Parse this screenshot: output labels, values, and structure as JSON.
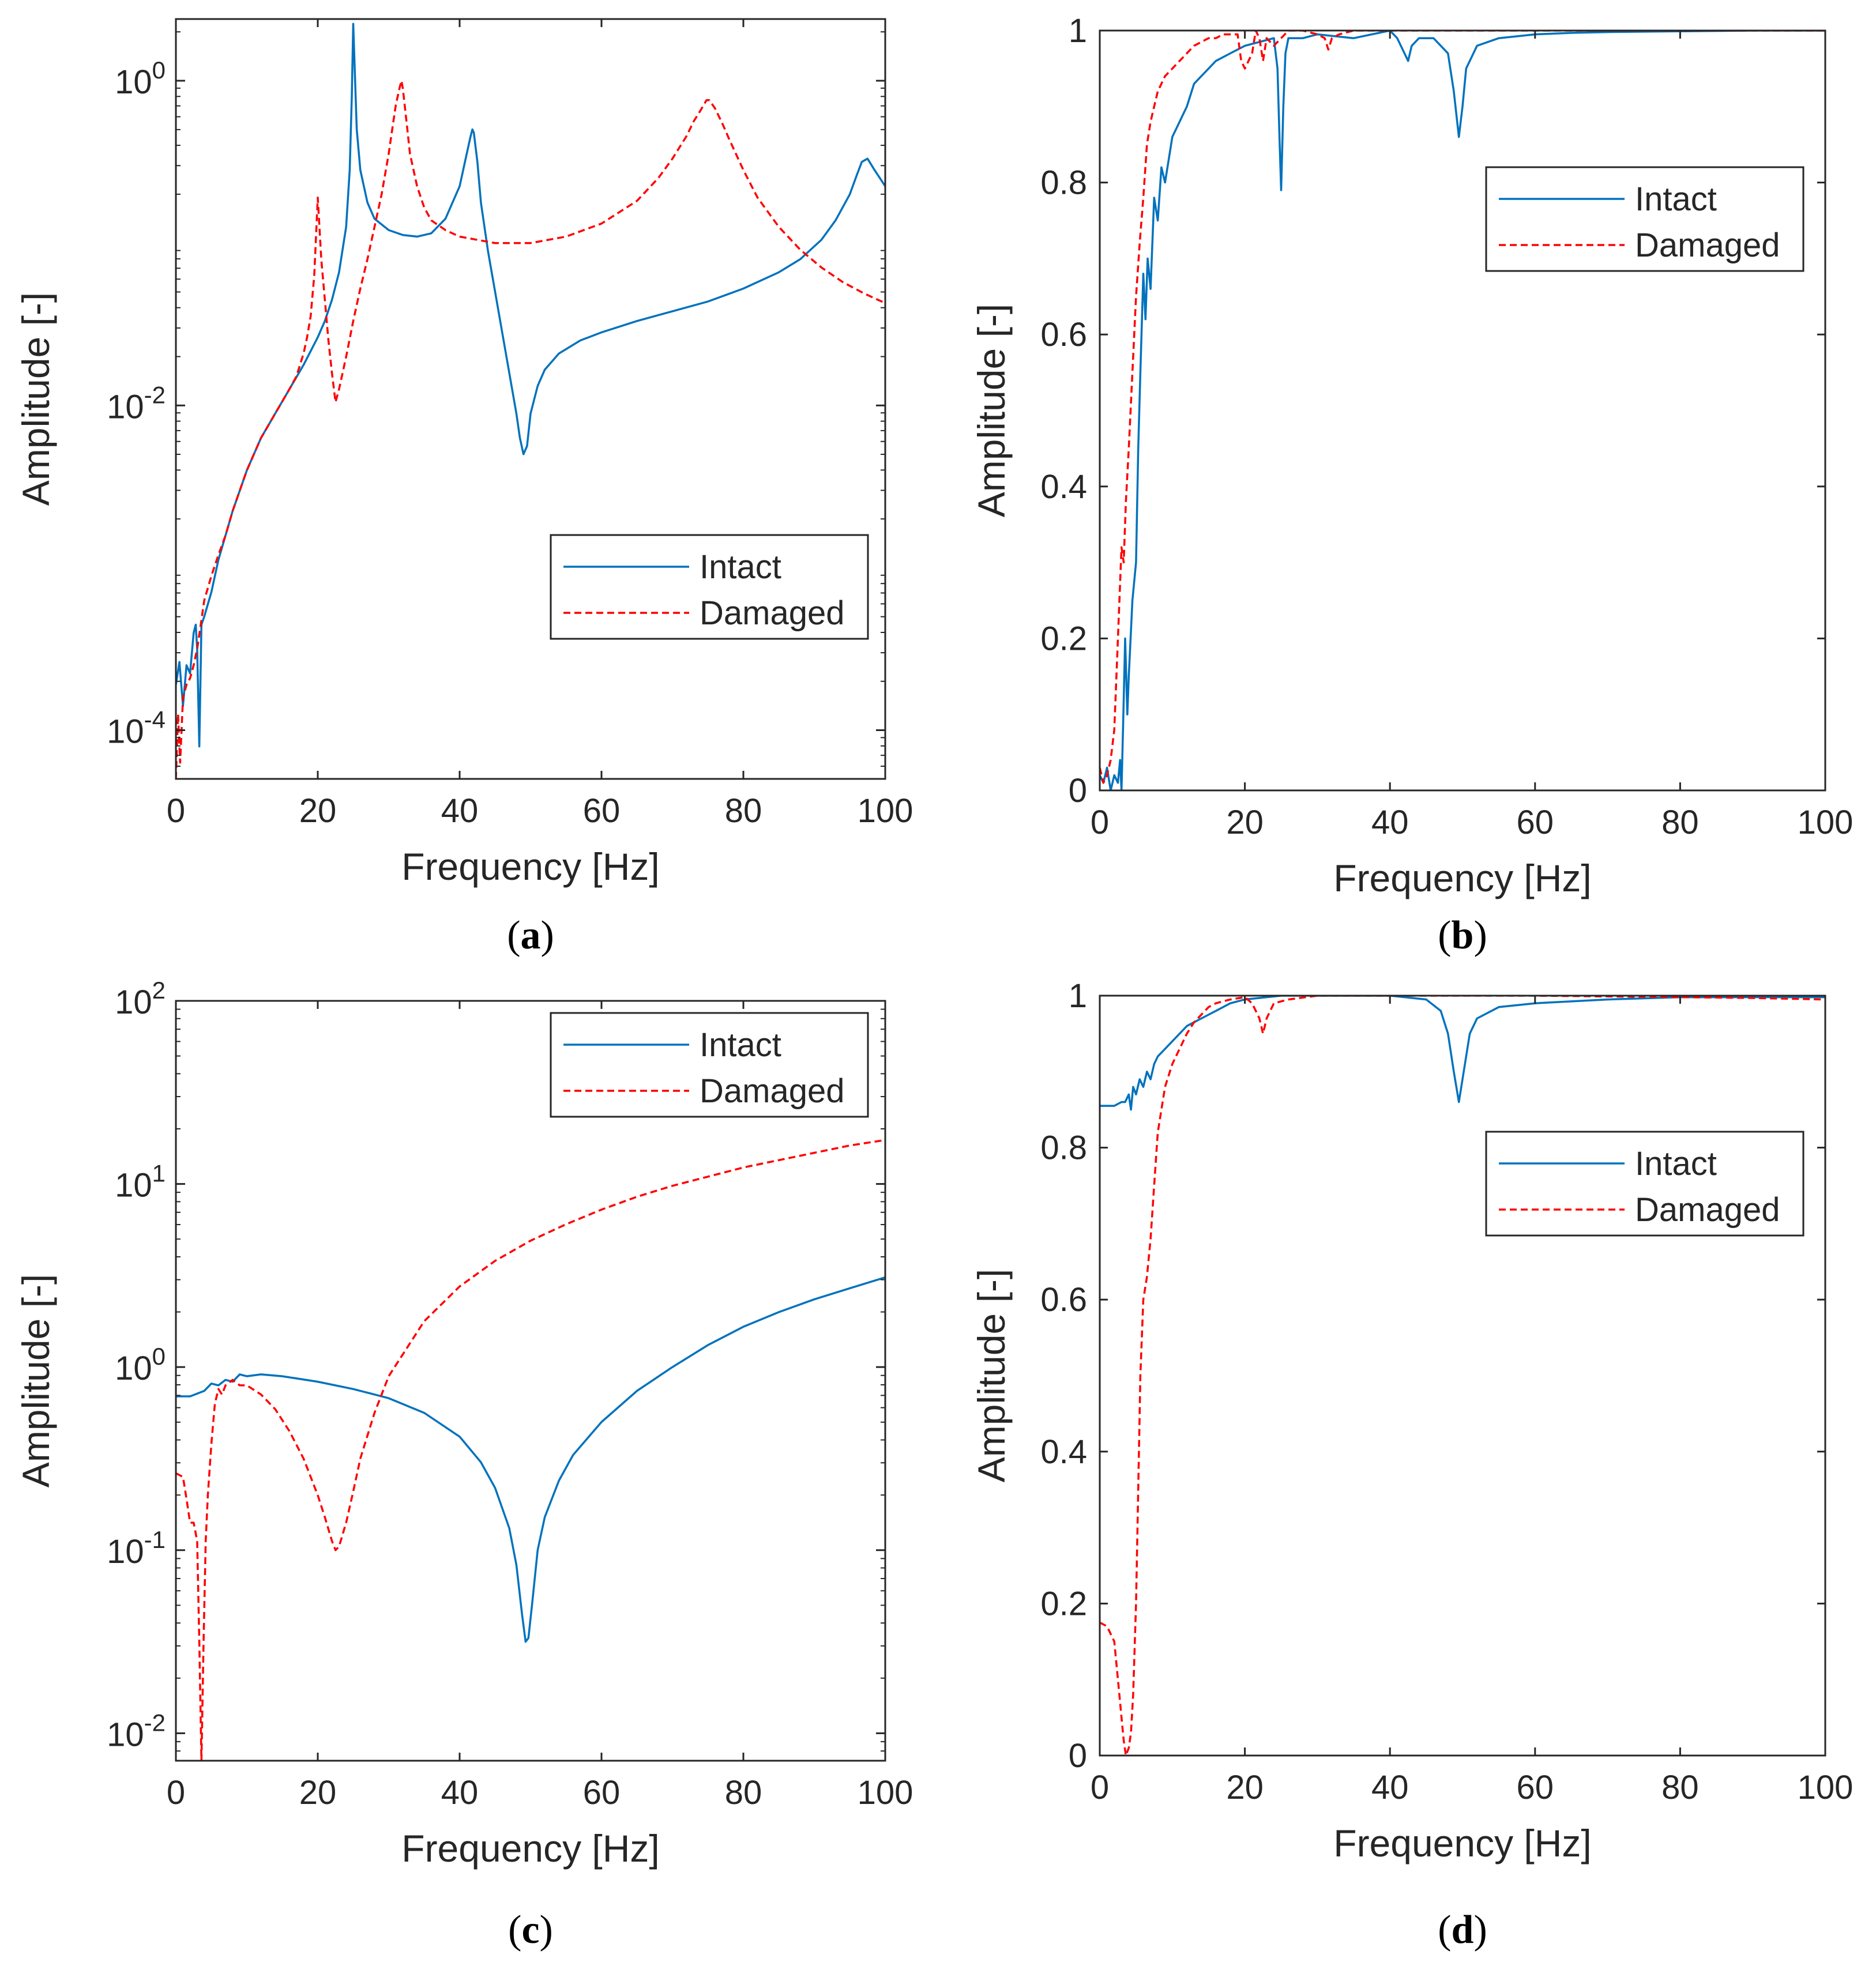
{
  "colors": {
    "intact": "#0072BD",
    "damaged": "#FF0000",
    "axis": "#262626"
  },
  "chart_data": [
    {
      "id": "a",
      "type": "line",
      "caption": "a",
      "xlabel": "Frequency [Hz]",
      "ylabel": "Amplitude [-]",
      "yscale": "log",
      "xlim": [
        0,
        100
      ],
      "ylim_log10": [
        -4.3,
        0.38
      ],
      "xticks": [
        "0",
        "20",
        "40",
        "60",
        "80",
        "100"
      ],
      "yticks": [
        {
          "base": "10",
          "exp": "-4",
          "log10": -4
        },
        {
          "base": "10",
          "exp": "-2",
          "log10": -2
        },
        {
          "base": "10",
          "exp": "0",
          "log10": 0
        }
      ],
      "legend": {
        "position": "center-right",
        "entries": [
          "Intact",
          "Damaged"
        ]
      },
      "series": [
        {
          "name": "Intact",
          "style": "solid",
          "x": [
            0,
            0.5,
            1,
            1.5,
            2,
            2.5,
            2.8,
            3,
            3.3,
            3.6,
            4,
            5,
            6,
            7,
            8,
            10,
            12,
            14,
            16,
            18,
            20,
            21,
            22,
            23,
            24,
            24.5,
            24.8,
            25,
            25.5,
            26,
            27,
            28,
            30,
            32,
            34,
            36,
            38,
            40,
            41,
            41.5,
            41.8,
            42,
            42.5,
            43,
            44,
            45,
            46,
            47,
            48,
            48.5,
            49,
            49.5,
            50,
            51,
            52,
            54,
            57,
            60,
            65,
            70,
            75,
            80,
            85,
            88,
            91,
            93,
            95,
            96,
            96.7,
            97.5,
            98.5,
            100
          ],
          "y": [
            -3.72,
            -3.58,
            -3.85,
            -3.6,
            -3.65,
            -3.4,
            -3.35,
            -3.5,
            -4.1,
            -3.35,
            -3.3,
            -3.15,
            -2.95,
            -2.8,
            -2.65,
            -2.4,
            -2.2,
            -2.05,
            -1.9,
            -1.75,
            -1.58,
            -1.48,
            -1.35,
            -1.18,
            -0.9,
            -0.55,
            -0.1,
            0.35,
            -0.3,
            -0.55,
            -0.75,
            -0.85,
            -0.92,
            -0.95,
            -0.96,
            -0.94,
            -0.85,
            -0.65,
            -0.45,
            -0.35,
            -0.3,
            -0.32,
            -0.5,
            -0.75,
            -1.05,
            -1.3,
            -1.55,
            -1.8,
            -2.05,
            -2.2,
            -2.3,
            -2.25,
            -2.05,
            -1.88,
            -1.78,
            -1.68,
            -1.6,
            -1.55,
            -1.48,
            -1.42,
            -1.36,
            -1.28,
            -1.18,
            -1.1,
            -0.98,
            -0.86,
            -0.7,
            -0.58,
            -0.5,
            -0.48,
            -0.55,
            -0.65
          ]
        },
        {
          "name": "Damaged",
          "style": "dashed",
          "x": [
            0,
            0.3,
            0.6,
            1,
            1.5,
            2,
            2.5,
            3,
            3.5,
            4,
            5,
            6,
            7,
            8,
            10,
            12,
            14,
            16,
            17,
            18,
            18.5,
            19,
            19.5,
            20,
            20.5,
            21,
            21.5,
            22,
            22.5,
            23,
            24,
            25,
            26,
            27,
            28,
            29,
            30,
            30.5,
            31,
            31.5,
            31.8,
            32,
            32.5,
            33,
            34,
            35,
            36,
            38,
            40,
            45,
            50,
            55,
            60,
            65,
            68,
            70,
            72,
            73,
            74,
            74.8,
            75.2,
            76,
            77,
            78,
            80,
            82,
            85,
            88,
            91,
            94,
            97,
            100
          ],
          "y": [
            -4.3,
            -3.9,
            -4.2,
            -3.8,
            -3.72,
            -3.68,
            -3.6,
            -3.5,
            -3.35,
            -3.2,
            -3.05,
            -2.92,
            -2.8,
            -2.65,
            -2.4,
            -2.2,
            -2.05,
            -1.9,
            -1.82,
            -1.68,
            -1.58,
            -1.45,
            -1.2,
            -0.72,
            -1.1,
            -1.35,
            -1.6,
            -1.8,
            -1.98,
            -1.9,
            -1.7,
            -1.48,
            -1.28,
            -1.1,
            -0.9,
            -0.7,
            -0.45,
            -0.3,
            -0.15,
            -0.05,
            0,
            -0.05,
            -0.25,
            -0.45,
            -0.65,
            -0.78,
            -0.86,
            -0.92,
            -0.96,
            -1,
            -1,
            -0.96,
            -0.88,
            -0.74,
            -0.6,
            -0.48,
            -0.34,
            -0.25,
            -0.18,
            -0.12,
            -0.12,
            -0.17,
            -0.26,
            -0.36,
            -0.55,
            -0.72,
            -0.9,
            -1.04,
            -1.15,
            -1.24,
            -1.31,
            -1.37
          ]
        }
      ]
    },
    {
      "id": "b",
      "type": "line",
      "caption": "b",
      "xlabel": "Frequency [Hz]",
      "ylabel": "Amplitude [-]",
      "yscale": "linear",
      "xlim": [
        0,
        100
      ],
      "ylim": [
        0,
        1
      ],
      "xticks": [
        "0",
        "20",
        "40",
        "60",
        "80",
        "100"
      ],
      "yticks": [
        "0",
        "0.2",
        "0.4",
        "0.6",
        "0.8",
        "1"
      ],
      "legend": {
        "position": "top-right",
        "entries": [
          "Intact",
          "Damaged"
        ]
      },
      "series": [
        {
          "name": "Intact",
          "style": "solid",
          "x": [
            0,
            0.5,
            1,
            1.5,
            2,
            2.5,
            2.8,
            3,
            3.2,
            3.5,
            3.8,
            4,
            4.5,
            5,
            5.3,
            5.6,
            6,
            6.3,
            6.6,
            7,
            7.5,
            8,
            8.5,
            9,
            10,
            11,
            12,
            13,
            14,
            15,
            16,
            18,
            20,
            22,
            24,
            24.5,
            24.8,
            25,
            25.3,
            25.6,
            26,
            28,
            30,
            35,
            40,
            41,
            42,
            42.5,
            43,
            44,
            46,
            48,
            48.8,
            49.5,
            50,
            50.5,
            52,
            55,
            60,
            65,
            70,
            80,
            90,
            100
          ],
          "y": [
            0.02,
            0.01,
            0.03,
            0,
            0.02,
            0.01,
            0.04,
            0,
            0.08,
            0.2,
            0.1,
            0.15,
            0.25,
            0.3,
            0.45,
            0.55,
            0.68,
            0.62,
            0.7,
            0.66,
            0.78,
            0.75,
            0.82,
            0.8,
            0.86,
            0.88,
            0.9,
            0.93,
            0.94,
            0.95,
            0.96,
            0.97,
            0.98,
            0.985,
            0.99,
            0.95,
            0.85,
            0.79,
            0.9,
            0.97,
            0.99,
            0.99,
            0.995,
            0.99,
            1,
            0.99,
            0.97,
            0.96,
            0.98,
            0.99,
            0.99,
            0.97,
            0.92,
            0.86,
            0.9,
            0.95,
            0.98,
            0.99,
            0.995,
            0.997,
            0.998,
            0.999,
            1,
            1
          ]
        },
        {
          "name": "Damaged",
          "style": "dashed",
          "x": [
            0,
            0.5,
            1,
            1.5,
            2,
            2.5,
            3,
            3.3,
            3.6,
            4,
            4.5,
            5,
            5.5,
            6,
            6.5,
            7,
            7.5,
            8,
            9,
            10,
            11,
            12,
            13,
            14,
            15,
            16,
            17,
            18,
            19,
            19.5,
            20,
            21,
            21.5,
            22,
            22.5,
            23,
            24,
            25,
            26,
            28,
            30,
            31,
            31.5,
            32,
            33,
            35,
            40,
            60,
            80,
            100
          ],
          "y": [
            0.03,
            0.01,
            0.02,
            0.04,
            0.08,
            0.2,
            0.32,
            0.3,
            0.38,
            0.45,
            0.55,
            0.65,
            0.72,
            0.78,
            0.85,
            0.88,
            0.9,
            0.92,
            0.94,
            0.95,
            0.96,
            0.97,
            0.98,
            0.985,
            0.99,
            0.99,
            0.995,
            0.995,
            0.995,
            0.96,
            0.95,
            0.97,
            1,
            0.99,
            0.96,
            0.99,
            0.98,
            0.99,
            1,
            1,
            0.995,
            0.99,
            0.975,
            0.99,
            0.995,
            1,
            1,
            1,
            1,
            1
          ]
        }
      ]
    },
    {
      "id": "c",
      "type": "line",
      "caption": "c",
      "xlabel": "Frequency [Hz]",
      "ylabel": "Amplitude [-]",
      "yscale": "log",
      "xlim": [
        0,
        100
      ],
      "ylim_log10": [
        -2.15,
        2
      ],
      "xticks": [
        "0",
        "20",
        "40",
        "60",
        "80",
        "100"
      ],
      "yticks": [
        {
          "base": "10",
          "exp": "-2",
          "log10": -2
        },
        {
          "base": "10",
          "exp": "-1",
          "log10": -1
        },
        {
          "base": "10",
          "exp": "0",
          "log10": 0
        },
        {
          "base": "10",
          "exp": "1",
          "log10": 1
        },
        {
          "base": "10",
          "exp": "2",
          "log10": 2
        }
      ],
      "legend": {
        "position": "top-right",
        "entries": [
          "Intact",
          "Damaged"
        ]
      },
      "series": [
        {
          "name": "Intact",
          "style": "solid",
          "x": [
            0,
            2,
            4,
            5,
            6,
            7,
            8,
            9,
            10,
            12,
            15,
            20,
            25,
            30,
            35,
            40,
            43,
            45,
            47,
            48,
            48.8,
            49.3,
            49.7,
            50.2,
            51,
            52,
            54,
            56,
            60,
            65,
            70,
            75,
            80,
            85,
            90,
            95,
            100
          ],
          "y": [
            -0.16,
            -0.16,
            -0.13,
            -0.09,
            -0.1,
            -0.07,
            -0.08,
            -0.04,
            -0.05,
            -0.04,
            -0.05,
            -0.08,
            -0.12,
            -0.17,
            -0.25,
            -0.38,
            -0.52,
            -0.66,
            -0.88,
            -1.08,
            -1.35,
            -1.5,
            -1.48,
            -1.3,
            -1.0,
            -0.82,
            -0.62,
            -0.48,
            -0.3,
            -0.13,
            0.0,
            0.12,
            0.22,
            0.3,
            0.37,
            0.43,
            0.49
          ]
        },
        {
          "name": "Damaged",
          "style": "dashed",
          "x": [
            0,
            1,
            1.5,
            2,
            2.5,
            3,
            3.3,
            3.6,
            3.9,
            4.2,
            4.5,
            5,
            5.5,
            6,
            6.5,
            7,
            8,
            9,
            10,
            12,
            14,
            16,
            18,
            20,
            21,
            22,
            22.5,
            23,
            24,
            25,
            26,
            28,
            30,
            35,
            40,
            45,
            50,
            55,
            60,
            65,
            70,
            75,
            80,
            85,
            90,
            95,
            100
          ],
          "y": [
            -0.58,
            -0.6,
            -0.72,
            -0.85,
            -0.85,
            -0.95,
            -1.5,
            -2.15,
            -1.5,
            -0.95,
            -0.7,
            -0.42,
            -0.2,
            -0.12,
            -0.15,
            -0.1,
            -0.07,
            -0.1,
            -0.1,
            -0.15,
            -0.23,
            -0.35,
            -0.5,
            -0.7,
            -0.82,
            -0.95,
            -1.0,
            -0.98,
            -0.85,
            -0.68,
            -0.5,
            -0.25,
            -0.05,
            0.25,
            0.44,
            0.58,
            0.69,
            0.78,
            0.86,
            0.93,
            0.99,
            1.04,
            1.09,
            1.13,
            1.17,
            1.21,
            1.24
          ]
        }
      ]
    },
    {
      "id": "d",
      "type": "line",
      "caption": "d",
      "xlabel": "Frequency [Hz]",
      "ylabel": "Amplitude [-]",
      "yscale": "linear",
      "xlim": [
        0,
        100
      ],
      "ylim": [
        0,
        1
      ],
      "xticks": [
        "0",
        "20",
        "40",
        "60",
        "80",
        "100"
      ],
      "yticks": [
        "0",
        "0.2",
        "0.4",
        "0.6",
        "0.8",
        "1"
      ],
      "legend": {
        "position": "top-right",
        "entries": [
          "Intact",
          "Damaged"
        ]
      },
      "series": [
        {
          "name": "Intact",
          "style": "solid",
          "x": [
            0,
            1,
            2,
            3,
            3.5,
            4,
            4.3,
            4.6,
            5,
            5.5,
            6,
            6.5,
            7,
            7.5,
            8,
            9,
            10,
            11,
            12,
            13,
            14,
            15,
            16,
            18,
            20,
            25,
            30,
            40,
            45,
            47,
            48,
            48.8,
            49.5,
            50,
            51,
            52,
            55,
            60,
            70,
            80,
            90,
            100
          ],
          "y": [
            0.855,
            0.855,
            0.855,
            0.86,
            0.86,
            0.87,
            0.85,
            0.88,
            0.87,
            0.89,
            0.88,
            0.9,
            0.89,
            0.91,
            0.92,
            0.93,
            0.94,
            0.95,
            0.96,
            0.965,
            0.97,
            0.975,
            0.98,
            0.99,
            0.995,
            1,
            1,
            1,
            0.995,
            0.98,
            0.95,
            0.9,
            0.86,
            0.89,
            0.95,
            0.97,
            0.985,
            0.99,
            0.995,
            0.998,
            0.998,
            0.998
          ]
        },
        {
          "name": "Damaged",
          "style": "dashed",
          "x": [
            0,
            1,
            2,
            2.5,
            3,
            3.3,
            3.6,
            4,
            4.3,
            4.6,
            5,
            5.3,
            5.6,
            6,
            6.5,
            7,
            7.5,
            8,
            9,
            10,
            11,
            12,
            13,
            14,
            15,
            16,
            18,
            20,
            21,
            22,
            22.5,
            23,
            24,
            26,
            30,
            40,
            50,
            60,
            70,
            80,
            90,
            100
          ],
          "y": [
            0.175,
            0.17,
            0.15,
            0.1,
            0.05,
            0.02,
            0,
            0.01,
            0.03,
            0.08,
            0.2,
            0.35,
            0.5,
            0.6,
            0.63,
            0.68,
            0.75,
            0.82,
            0.88,
            0.91,
            0.93,
            0.95,
            0.965,
            0.975,
            0.985,
            0.99,
            0.995,
            0.998,
            0.99,
            0.97,
            0.95,
            0.97,
            0.99,
            0.995,
            1,
            1,
            1,
            1,
            0.999,
            0.998,
            0.997,
            0.995
          ]
        }
      ]
    }
  ]
}
